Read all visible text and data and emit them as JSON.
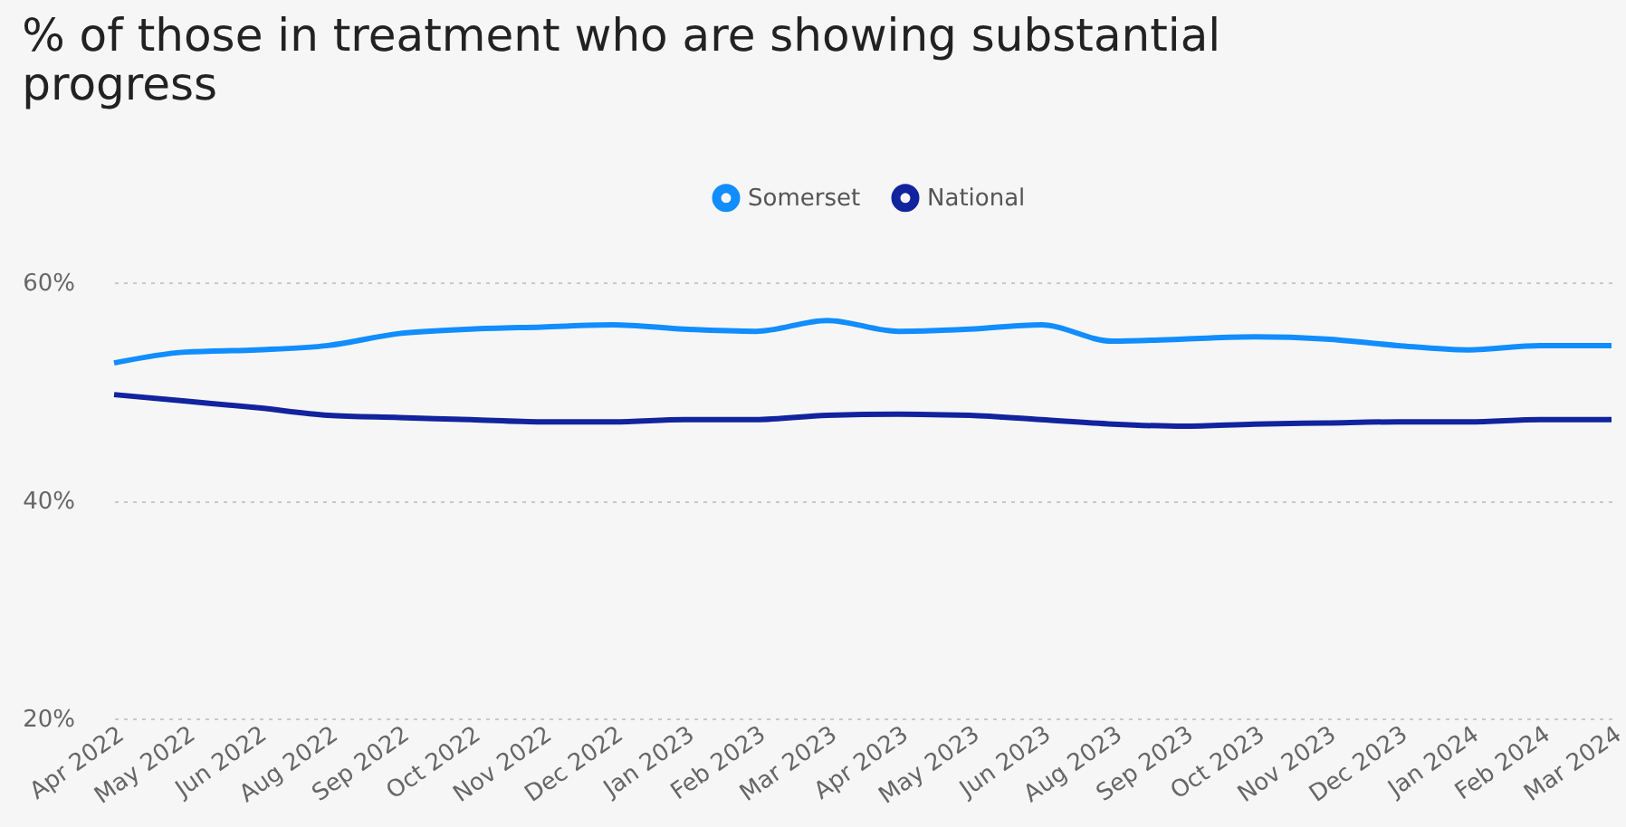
{
  "chart_data": {
    "type": "line",
    "title": "% of those in treatment who are showing substantial progress",
    "categories": [
      "Apr 2022",
      "May 2022",
      "Jun 2022",
      "Aug 2022",
      "Sep 2022",
      "Oct 2022",
      "Nov 2022",
      "Dec 2022",
      "Jan 2023",
      "Feb 2023",
      "Mar 2023",
      "Apr 2023",
      "May 2023",
      "Jun 2023",
      "Aug 2023",
      "Sep 2023",
      "Oct 2023",
      "Nov 2023",
      "Dec 2023",
      "Jan 2024",
      "Feb 2024",
      "Mar 2024"
    ],
    "series": [
      {
        "name": "Somerset",
        "color": "#118dff",
        "values": [
          52.6,
          53.6,
          53.8,
          54.2,
          55.3,
          55.7,
          55.9,
          56.1,
          55.7,
          55.5,
          56.5,
          55.5,
          55.7,
          56.1,
          54.6,
          54.8,
          55.0,
          54.8,
          54.2,
          53.8,
          54.2,
          54.2
        ]
      },
      {
        "name": "National",
        "color": "#12239e",
        "values": [
          49.7,
          49.1,
          48.5,
          47.8,
          47.6,
          47.4,
          47.2,
          47.2,
          47.4,
          47.4,
          47.8,
          47.9,
          47.8,
          47.4,
          47.0,
          46.8,
          47.0,
          47.1,
          47.2,
          47.2,
          47.4,
          47.4
        ]
      }
    ],
    "ylim": [
      20,
      60
    ],
    "yticks": [
      {
        "value": 20,
        "label": "20%"
      },
      {
        "value": 40,
        "label": "40%"
      },
      {
        "value": 60,
        "label": "60%"
      }
    ],
    "grid": "y",
    "legend": "top",
    "line_style": "solid",
    "marker": "none"
  }
}
